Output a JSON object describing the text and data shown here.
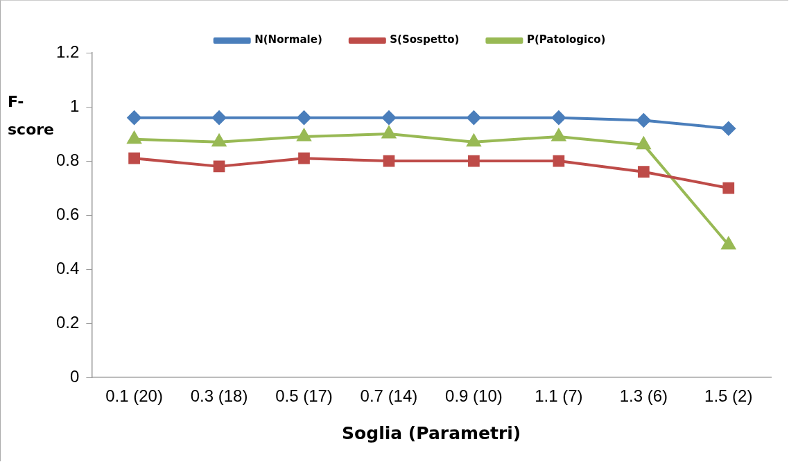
{
  "chart_data": {
    "type": "line",
    "xlabel": "Soglia (Parametri)",
    "ylabel": "F-score",
    "categories": [
      "0.1 (20)",
      "0.3 (18)",
      "0.5 (17)",
      "0.7 (14)",
      "0.9 (10)",
      "1.1 (7)",
      "1.3 (6)",
      "1.5 (2)"
    ],
    "series": [
      {
        "name": "N(Normale)",
        "color": "#4a7ebb",
        "marker": "diamond",
        "values": [
          0.96,
          0.96,
          0.96,
          0.96,
          0.96,
          0.96,
          0.95,
          0.92
        ]
      },
      {
        "name": "S(Sospetto)",
        "color": "#be4b48",
        "marker": "square",
        "values": [
          0.81,
          0.78,
          0.81,
          0.8,
          0.8,
          0.8,
          0.76,
          0.7
        ]
      },
      {
        "name": "P(Patologico)",
        "color": "#98b954",
        "marker": "triangle",
        "values": [
          0.88,
          0.87,
          0.89,
          0.9,
          0.87,
          0.89,
          0.86,
          0.49
        ]
      }
    ],
    "ylim": [
      0,
      1.2
    ],
    "yticks": [
      0,
      0.2,
      0.4,
      0.6,
      0.8,
      1,
      1.2
    ],
    "grid": false,
    "legend": "top"
  }
}
